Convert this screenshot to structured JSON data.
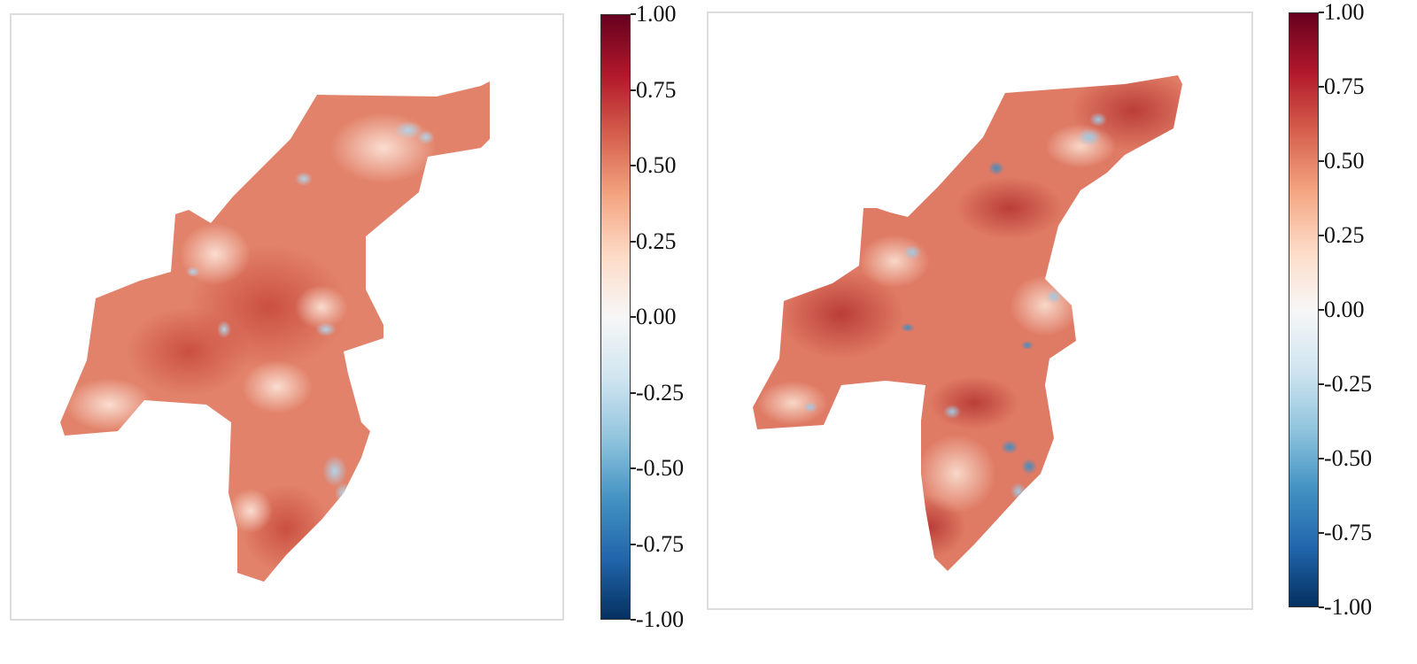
{
  "chart_data": [
    {
      "type": "heatmap",
      "title": "",
      "colormap": "RdBu_r",
      "colors": [
        "#053061",
        "#2166ac",
        "#4393c3",
        "#92c5de",
        "#d1e5f0",
        "#f7f7f7",
        "#fddbc7",
        "#f4a582",
        "#d6604d",
        "#b2182b",
        "#67001f"
      ],
      "clim": [
        -1.0,
        1.0
      ],
      "colorbar_ticks": [
        "1.00",
        "0.75",
        "0.50",
        "0.25",
        "0.00",
        "-0.25",
        "-0.50",
        "-0.75",
        "-1.00"
      ],
      "colorbar_tick_values": [
        1.0,
        0.75,
        0.5,
        0.25,
        0.0,
        -0.25,
        -0.5,
        -0.75,
        -1.0
      ],
      "approx_typical_value": 0.45,
      "grid": false
    },
    {
      "type": "heatmap",
      "title": "",
      "colormap": "RdBu_r",
      "colors": [
        "#053061",
        "#2166ac",
        "#4393c3",
        "#92c5de",
        "#d1e5f0",
        "#f7f7f7",
        "#fddbc7",
        "#f4a582",
        "#d6604d",
        "#b2182b",
        "#67001f"
      ],
      "clim": [
        -1.0,
        1.0
      ],
      "colorbar_ticks": [
        "1.00",
        "0.75",
        "0.50",
        "0.25",
        "0.00",
        "-0.25",
        "-0.50",
        "-0.75",
        "-1.00"
      ],
      "colorbar_tick_values": [
        1.0,
        0.75,
        0.5,
        0.25,
        0.0,
        -0.25,
        -0.5,
        -0.75,
        -1.0
      ],
      "approx_typical_value": 0.5,
      "grid": false
    }
  ]
}
